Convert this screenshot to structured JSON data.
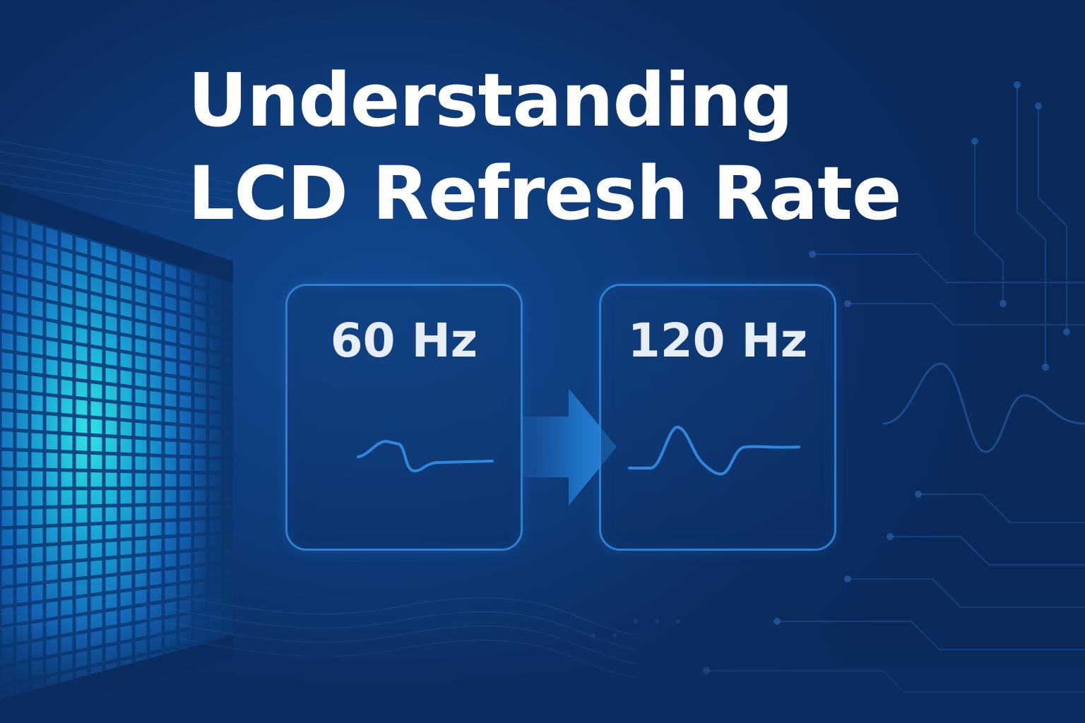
{
  "title": {
    "line1": "Understanding",
    "line2": "LCD Refresh Rate"
  },
  "panels": [
    {
      "label": "60 Hz",
      "icon": "waveform-icon"
    },
    {
      "label": "120 Hz",
      "icon": "waveform-icon"
    }
  ],
  "arrow": {
    "icon": "arrow-right-icon"
  },
  "colors": {
    "background": "#0c3166",
    "accent": "#2e7fd0",
    "glow": "#27d3e0",
    "text": "#ffffff"
  }
}
